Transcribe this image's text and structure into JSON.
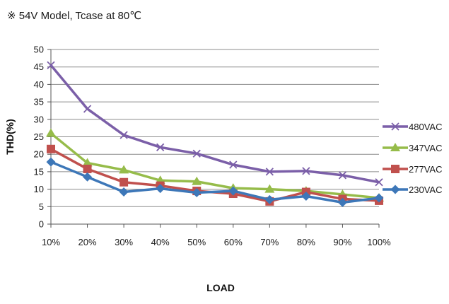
{
  "caption": "※ 54V Model, Tcase at 80℃",
  "chart_data": {
    "type": "line",
    "xlabel": "LOAD",
    "ylabel": "THD(%)",
    "categories": [
      "10%",
      "20%",
      "30%",
      "40%",
      "50%",
      "60%",
      "70%",
      "80%",
      "90%",
      "100%"
    ],
    "ylim": [
      0,
      50
    ],
    "yticks": [
      0,
      5,
      10,
      15,
      20,
      25,
      30,
      35,
      40,
      45,
      50
    ],
    "grid": true,
    "legend_position": "right",
    "series": [
      {
        "name": "480VAC",
        "color": "#7b5fa8",
        "marker": "x",
        "values": [
          45.5,
          33,
          25.5,
          22,
          20.2,
          17,
          15,
          15.2,
          14,
          12
        ]
      },
      {
        "name": "347VAC",
        "color": "#96bc4a",
        "marker": "triangle",
        "values": [
          26,
          17.5,
          15.5,
          12.5,
          12.2,
          10.3,
          10,
          9.5,
          8.5,
          7.5
        ]
      },
      {
        "name": "277VAC",
        "color": "#c0504d",
        "marker": "square",
        "values": [
          21.5,
          15.8,
          12,
          11,
          9.5,
          8.7,
          6.5,
          9.2,
          7.2,
          6.7
        ]
      },
      {
        "name": "230VAC",
        "color": "#3d77b8",
        "marker": "diamond",
        "values": [
          17.8,
          13.5,
          9.2,
          10.2,
          9,
          9.5,
          7,
          8,
          6.2,
          7.5
        ]
      }
    ]
  }
}
